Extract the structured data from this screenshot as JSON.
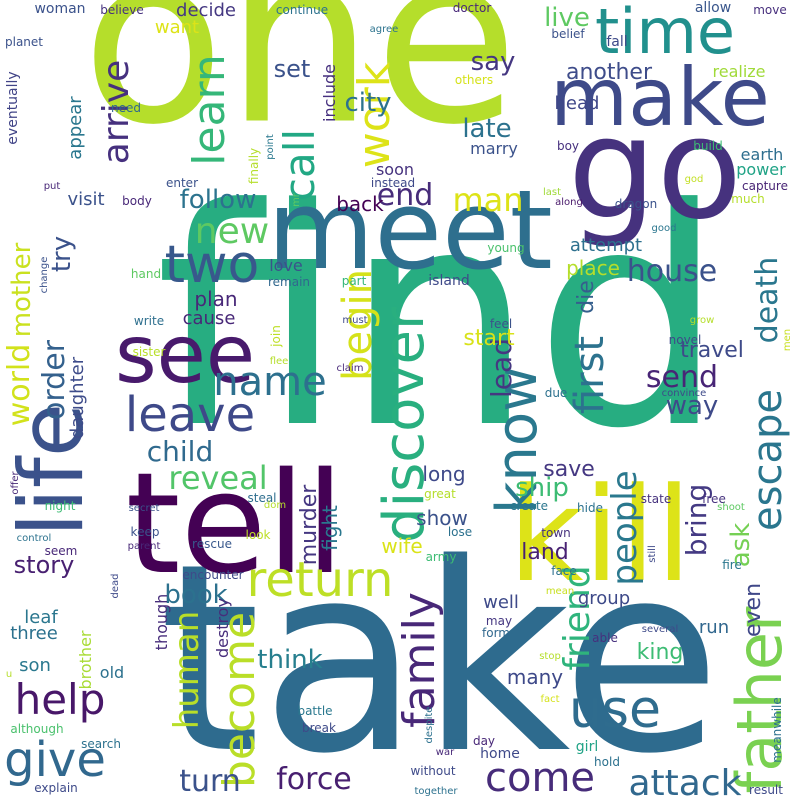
{
  "words": [
    {
      "text": "one",
      "color": "#b5de2b",
      "vertical": false
    },
    {
      "text": "find",
      "color": "#27ad81",
      "vertical": false
    },
    {
      "text": "take",
      "color": "#2e6b8e",
      "vertical": false
    },
    {
      "text": "tell",
      "color": "#440154",
      "vertical": false
    },
    {
      "text": "go",
      "color": "#46327e",
      "vertical": false
    },
    {
      "text": "meet",
      "color": "#2e6f8e",
      "vertical": false
    },
    {
      "text": "kill",
      "color": "#dde318",
      "vertical": false
    },
    {
      "text": "life",
      "color": "#3b528b",
      "vertical": true
    },
    {
      "text": "make",
      "color": "#3e4a89",
      "vertical": false
    },
    {
      "text": "see",
      "color": "#481a6c",
      "vertical": false
    },
    {
      "text": "time",
      "color": "#21908d",
      "vertical": false
    },
    {
      "text": "return",
      "color": "#bddf26",
      "vertical": false
    },
    {
      "text": "discover",
      "color": "#29af7f",
      "vertical": true
    },
    {
      "text": "father",
      "color": "#7ad151",
      "vertical": true
    },
    {
      "text": "family",
      "color": "#482878",
      "vertical": true
    },
    {
      "text": "give",
      "color": "#31688e",
      "vertical": false
    },
    {
      "text": "leave",
      "color": "#3e4989",
      "vertical": false
    },
    {
      "text": "come",
      "color": "#472c7a",
      "vertical": false
    },
    {
      "text": "use",
      "color": "#2f6c8e",
      "vertical": false
    },
    {
      "text": "help",
      "color": "#481769",
      "vertical": false
    },
    {
      "text": "become",
      "color": "#bade28",
      "vertical": true
    },
    {
      "text": "know",
      "color": "#2a788e",
      "vertical": true
    },
    {
      "text": "call",
      "color": "#22a884",
      "vertical": true
    },
    {
      "text": "two",
      "color": "#38588c",
      "vertical": false
    },
    {
      "text": "new",
      "color": "#5ec962",
      "vertical": false
    },
    {
      "text": "name",
      "color": "#2d708e",
      "vertical": false
    },
    {
      "text": "work",
      "color": "#dde318",
      "vertical": true
    },
    {
      "text": "learn",
      "color": "#35b779",
      "vertical": true
    },
    {
      "text": "attack",
      "color": "#31688e",
      "vertical": false
    },
    {
      "text": "force",
      "color": "#481f70",
      "vertical": false
    },
    {
      "text": "begin",
      "color": "#d5e21a",
      "vertical": true
    },
    {
      "text": "first",
      "color": "#2c728e",
      "vertical": true
    },
    {
      "text": "reveal",
      "color": "#52c569",
      "vertical": false
    },
    {
      "text": "house",
      "color": "#3b528b",
      "vertical": false
    },
    {
      "text": "child",
      "color": "#306a8e",
      "vertical": false
    },
    {
      "text": "escape",
      "color": "#2a768e",
      "vertical": true
    },
    {
      "text": "human",
      "color": "#b8de29",
      "vertical": true
    },
    {
      "text": "people",
      "color": "#2a788e",
      "vertical": true
    },
    {
      "text": "friend",
      "color": "#2fb47c",
      "vertical": true
    },
    {
      "text": "send",
      "color": "#482576",
      "vertical": false
    },
    {
      "text": "world",
      "color": "#d2e21b",
      "vertical": true
    },
    {
      "text": "death",
      "color": "#2a778e",
      "vertical": true
    },
    {
      "text": "turn",
      "color": "#3b528b",
      "vertical": false
    },
    {
      "text": "end",
      "color": "#472c7a",
      "vertical": false
    },
    {
      "text": "man",
      "color": "#dde318",
      "vertical": false
    },
    {
      "text": "ship",
      "color": "#3dbc74",
      "vertical": false
    },
    {
      "text": "arrive",
      "color": "#46307e",
      "vertical": true
    },
    {
      "text": "order",
      "color": "#34618d",
      "vertical": true
    },
    {
      "text": "mother",
      "color": "#cae11f",
      "vertical": true
    },
    {
      "text": "follow",
      "color": "#2c738e",
      "vertical": false
    },
    {
      "text": "lead",
      "color": "#453781",
      "vertical": true
    },
    {
      "text": "way",
      "color": "#3e4a89",
      "vertical": false
    },
    {
      "text": "bring",
      "color": "#443a83",
      "vertical": true
    },
    {
      "text": "book",
      "color": "#2c718e",
      "vertical": false
    },
    {
      "text": "ask",
      "color": "#75d054",
      "vertical": true
    },
    {
      "text": "city",
      "color": "#2c728e",
      "vertical": false
    },
    {
      "text": "try",
      "color": "#3b528b",
      "vertical": true
    },
    {
      "text": "die",
      "color": "#355f8d",
      "vertical": true
    },
    {
      "text": "think",
      "color": "#277f8e",
      "vertical": false
    },
    {
      "text": "travel",
      "color": "#3e4a89",
      "vertical": false
    },
    {
      "text": "another",
      "color": "#3e4c8a",
      "vertical": false
    },
    {
      "text": "say",
      "color": "#453781",
      "vertical": false
    },
    {
      "text": "late",
      "color": "#2c728e",
      "vertical": false
    },
    {
      "text": "live",
      "color": "#5ec962",
      "vertical": false
    },
    {
      "text": "even",
      "color": "#3f4788",
      "vertical": true
    },
    {
      "text": "story",
      "color": "#482071",
      "vertical": false
    },
    {
      "text": "land",
      "color": "#482173",
      "vertical": false
    },
    {
      "text": "place",
      "color": "#b5de2b",
      "vertical": false
    },
    {
      "text": "king",
      "color": "#3dbc74",
      "vertical": false
    },
    {
      "text": "set",
      "color": "#3b528b",
      "vertical": false
    },
    {
      "text": "long",
      "color": "#3e4989",
      "vertical": false
    },
    {
      "text": "save",
      "color": "#453882",
      "vertical": false
    },
    {
      "text": "start",
      "color": "#d8e219",
      "vertical": false
    },
    {
      "text": "murder",
      "color": "#453781",
      "vertical": true
    },
    {
      "text": "show",
      "color": "#3b528b",
      "vertical": false
    },
    {
      "text": "plan",
      "color": "#482878",
      "vertical": false
    },
    {
      "text": "fight",
      "color": "#2a778e",
      "vertical": true
    },
    {
      "text": "wife",
      "color": "#dae319",
      "vertical": false
    },
    {
      "text": "group",
      "color": "#3e4a89",
      "vertical": false
    },
    {
      "text": "run",
      "color": "#31678e",
      "vertical": false
    },
    {
      "text": "daughter",
      "color": "#3e4c8a",
      "vertical": true
    },
    {
      "text": "leaf",
      "color": "#2a768e",
      "vertical": false
    },
    {
      "text": "three",
      "color": "#2c718e",
      "vertical": false
    },
    {
      "text": "son",
      "color": "#2a788e",
      "vertical": false
    },
    {
      "text": "old",
      "color": "#2c718e",
      "vertical": false
    },
    {
      "text": "many",
      "color": "#3e4989",
      "vertical": false
    },
    {
      "text": "well",
      "color": "#3e4a89",
      "vertical": false
    },
    {
      "text": "appear",
      "color": "#2a778e",
      "vertical": true
    },
    {
      "text": "head",
      "color": "#3f4788",
      "vertical": false
    },
    {
      "text": "back",
      "color": "#440154",
      "vertical": false
    },
    {
      "text": "soon",
      "color": "#46327e",
      "vertical": false
    },
    {
      "text": "love",
      "color": "#3b528b",
      "vertical": false
    },
    {
      "text": "cause",
      "color": "#482878",
      "vertical": false
    },
    {
      "text": "decide",
      "color": "#453882",
      "vertical": false
    },
    {
      "text": "want",
      "color": "#dde318",
      "vertical": false
    },
    {
      "text": "marry",
      "color": "#3b528b",
      "vertical": false
    },
    {
      "text": "earth",
      "color": "#2e6e8e",
      "vertical": false
    },
    {
      "text": "power",
      "color": "#20a386",
      "vertical": false
    },
    {
      "text": "visit",
      "color": "#3b528b",
      "vertical": false
    },
    {
      "text": "attempt",
      "color": "#2d708e",
      "vertical": false
    },
    {
      "text": "realize",
      "color": "#a0da39",
      "vertical": false
    },
    {
      "text": "include",
      "color": "#46307e",
      "vertical": true
    },
    {
      "text": "though",
      "color": "#472d7b",
      "vertical": true
    },
    {
      "text": "destroy",
      "color": "#472d7b",
      "vertical": true
    },
    {
      "text": "brother",
      "color": "#a8db34",
      "vertical": true
    },
    {
      "text": "eventually",
      "color": "#414487",
      "vertical": true
    },
    {
      "text": "woman",
      "color": "#3b528b",
      "vertical": false
    },
    {
      "text": "believe",
      "color": "#46327e",
      "vertical": false
    },
    {
      "text": "continue",
      "color": "#2c728e",
      "vertical": false
    },
    {
      "text": "doctor",
      "color": "#482878",
      "vertical": false
    },
    {
      "text": "allow",
      "color": "#39568c",
      "vertical": false
    },
    {
      "text": "move",
      "color": "#472f7d",
      "vertical": false
    },
    {
      "text": "planet",
      "color": "#3b528b",
      "vertical": false
    },
    {
      "text": "agree",
      "color": "#2c738e",
      "vertical": false
    },
    {
      "text": "belief",
      "color": "#3b528b",
      "vertical": false
    },
    {
      "text": "fall",
      "color": "#3e4a89",
      "vertical": false
    },
    {
      "text": "others",
      "color": "#d5e21a",
      "vertical": false
    },
    {
      "text": "need",
      "color": "#31688e",
      "vertical": false
    },
    {
      "text": "finally",
      "color": "#b5de2b",
      "vertical": true
    },
    {
      "text": "point",
      "color": "#2a788e",
      "vertical": true
    },
    {
      "text": "boy",
      "color": "#46307e",
      "vertical": false
    },
    {
      "text": "build",
      "color": "#3dbc74",
      "vertical": false
    },
    {
      "text": "god",
      "color": "#c2df23",
      "vertical": false
    },
    {
      "text": "enter",
      "color": "#3b528b",
      "vertical": false
    },
    {
      "text": "instead",
      "color": "#3e4989",
      "vertical": false
    },
    {
      "text": "put",
      "color": "#482878",
      "vertical": false
    },
    {
      "text": "mr",
      "color": "#5ec962",
      "vertical": true
    },
    {
      "text": "last",
      "color": "#a0da39",
      "vertical": false
    },
    {
      "text": "capture",
      "color": "#482475",
      "vertical": false
    },
    {
      "text": "body",
      "color": "#482878",
      "vertical": false
    },
    {
      "text": "along",
      "color": "#48186a",
      "vertical": false
    },
    {
      "text": "dragon",
      "color": "#3b528b",
      "vertical": false
    },
    {
      "text": "much",
      "color": "#b5de2b",
      "vertical": false
    },
    {
      "text": "good",
      "color": "#2a768e",
      "vertical": false
    },
    {
      "text": "change",
      "color": "#3b528b",
      "vertical": true
    },
    {
      "text": "young",
      "color": "#4ac16d",
      "vertical": false
    },
    {
      "text": "hand",
      "color": "#5ec962",
      "vertical": false
    },
    {
      "text": "remain",
      "color": "#31688e",
      "vertical": false
    },
    {
      "text": "part",
      "color": "#35b779",
      "vertical": false
    },
    {
      "text": "island",
      "color": "#3e4a89",
      "vertical": false
    },
    {
      "text": "write",
      "color": "#2e6f8e",
      "vertical": false
    },
    {
      "text": "must",
      "color": "#3e4a89",
      "vertical": false
    },
    {
      "text": "join",
      "color": "#bddf26",
      "vertical": true
    },
    {
      "text": "feel",
      "color": "#3b528b",
      "vertical": false
    },
    {
      "text": "grow",
      "color": "#b5de2b",
      "vertical": false
    },
    {
      "text": "novel",
      "color": "#3e4989",
      "vertical": false
    },
    {
      "text": "men",
      "color": "#c8e020",
      "vertical": true
    },
    {
      "text": "sister",
      "color": "#b8de29",
      "vertical": false
    },
    {
      "text": "flee",
      "color": "#b5de2b",
      "vertical": false
    },
    {
      "text": "claim",
      "color": "#482878",
      "vertical": false
    },
    {
      "text": "convince",
      "color": "#3e4a89",
      "vertical": false
    },
    {
      "text": "due",
      "color": "#2c718e",
      "vertical": false
    },
    {
      "text": "offer",
      "color": "#482878",
      "vertical": true
    },
    {
      "text": "night",
      "color": "#3dbc74",
      "vertical": false
    },
    {
      "text": "secret",
      "color": "#3b528b",
      "vertical": false
    },
    {
      "text": "steal",
      "color": "#2e6e8e",
      "vertical": false
    },
    {
      "text": "dom",
      "color": "#b5de2b",
      "vertical": false
    },
    {
      "text": "great",
      "color": "#b5de2b",
      "vertical": false
    },
    {
      "text": "create",
      "color": "#2a768e",
      "vertical": false
    },
    {
      "text": "hide",
      "color": "#2c718e",
      "vertical": false
    },
    {
      "text": "free",
      "color": "#46327e",
      "vertical": false
    },
    {
      "text": "state",
      "color": "#46327e",
      "vertical": false
    },
    {
      "text": "shoot",
      "color": "#5ec962",
      "vertical": false
    },
    {
      "text": "control",
      "color": "#2c728e",
      "vertical": false
    },
    {
      "text": "seem",
      "color": "#482878",
      "vertical": false
    },
    {
      "text": "parent",
      "color": "#482878",
      "vertical": false
    },
    {
      "text": "keep",
      "color": "#3b528b",
      "vertical": false
    },
    {
      "text": "look",
      "color": "#bddf26",
      "vertical": false
    },
    {
      "text": "town",
      "color": "#46327e",
      "vertical": false
    },
    {
      "text": "still",
      "color": "#3e4989",
      "vertical": true
    },
    {
      "text": "rescue",
      "color": "#38588c",
      "vertical": false
    },
    {
      "text": "lose",
      "color": "#2c718e",
      "vertical": false
    },
    {
      "text": "army",
      "color": "#3dbc74",
      "vertical": false
    },
    {
      "text": "face",
      "color": "#2c718e",
      "vertical": false
    },
    {
      "text": "fire",
      "color": "#2a778e",
      "vertical": false
    },
    {
      "text": "encounter",
      "color": "#3e4a89",
      "vertical": false
    },
    {
      "text": "dead",
      "color": "#3e4a89",
      "vertical": true
    },
    {
      "text": "able",
      "color": "#46307e",
      "vertical": false
    },
    {
      "text": "mean",
      "color": "#c8e020",
      "vertical": false
    },
    {
      "text": "several",
      "color": "#3e4a89",
      "vertical": false
    },
    {
      "text": "may",
      "color": "#453781",
      "vertical": false
    },
    {
      "text": "form",
      "color": "#31688e",
      "vertical": false
    },
    {
      "text": "stop",
      "color": "#b5de2b",
      "vertical": false
    },
    {
      "text": "u",
      "color": "#b5de2b",
      "vertical": false
    },
    {
      "text": "fact",
      "color": "#d5e21a",
      "vertical": false
    },
    {
      "text": "battle",
      "color": "#2a788e",
      "vertical": false
    },
    {
      "text": "break",
      "color": "#3e4a89",
      "vertical": false
    },
    {
      "text": "although",
      "color": "#4ac16d",
      "vertical": false
    },
    {
      "text": "search",
      "color": "#2c718e",
      "vertical": false
    },
    {
      "text": "despite",
      "color": "#2c718e",
      "vertical": true
    },
    {
      "text": "day",
      "color": "#482878",
      "vertical": false
    },
    {
      "text": "war",
      "color": "#482878",
      "vertical": false
    },
    {
      "text": "home",
      "color": "#3e4989",
      "vertical": false
    },
    {
      "text": "girl",
      "color": "#20a386",
      "vertical": false
    },
    {
      "text": "hold",
      "color": "#2c718e",
      "vertical": false
    },
    {
      "text": "result",
      "color": "#3e4a89",
      "vertical": false
    },
    {
      "text": "meanwhile",
      "color": "#2c718e",
      "vertical": true
    },
    {
      "text": "explain",
      "color": "#3e4a89",
      "vertical": false
    },
    {
      "text": "without",
      "color": "#3e4a89",
      "vertical": false
    },
    {
      "text": "together",
      "color": "#2c718e",
      "vertical": false
    }
  ]
}
